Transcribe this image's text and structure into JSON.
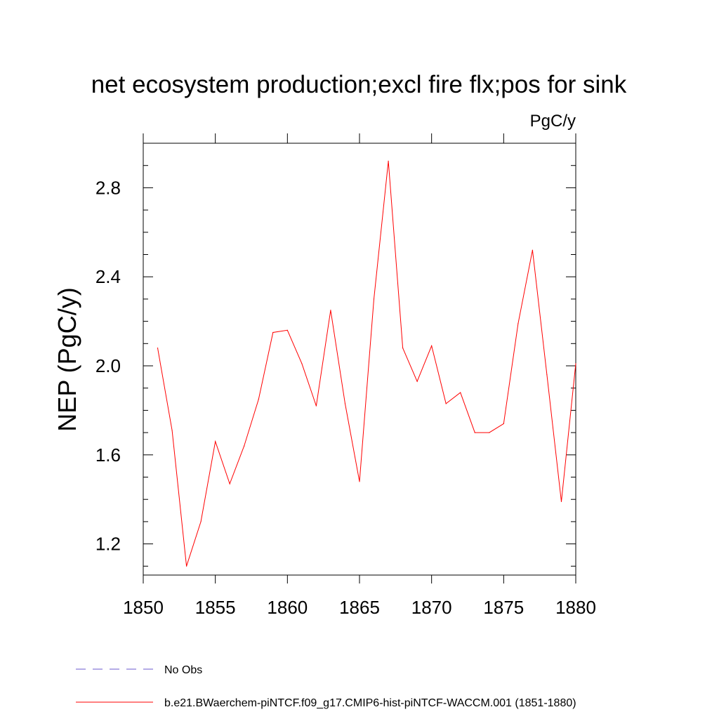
{
  "chart_data": {
    "type": "line",
    "title": "net ecosystem production;excl fire flx;pos for sink",
    "units": "PgC/y",
    "ylabel": "NEP  (PgC/y)",
    "xlabel": "",
    "xlim": [
      1850,
      1880
    ],
    "ylim": [
      1.06,
      3.0
    ],
    "xticks": [
      1850,
      1855,
      1860,
      1865,
      1870,
      1875,
      1880
    ],
    "xtick_labels": [
      "1850",
      "1855",
      "1860",
      "1865",
      "1870",
      "1875",
      "1880"
    ],
    "yticks": [
      1.2,
      1.6,
      2.0,
      2.4,
      2.8
    ],
    "ytick_labels": [
      "1.2",
      "1.6",
      "2.0",
      "2.4",
      "2.8"
    ],
    "grid": false,
    "legend_placement": "bottom-left, below plot",
    "series": [
      {
        "name": "b.e21.BWaerchem-piNTCF.f09_g17.CMIP6-hist-piNTCF-WACCM.001 (1851-1880)",
        "color": "#ff0000",
        "style": "solid",
        "x": [
          1851,
          1852,
          1853,
          1854,
          1855,
          1856,
          1857,
          1858,
          1859,
          1860,
          1861,
          1862,
          1863,
          1864,
          1865,
          1866,
          1867,
          1868,
          1869,
          1870,
          1871,
          1872,
          1873,
          1874,
          1875,
          1876,
          1877,
          1878,
          1879,
          1880
        ],
        "y": [
          2.08,
          1.71,
          1.1,
          1.3,
          1.66,
          1.47,
          1.64,
          1.85,
          2.15,
          2.16,
          2.01,
          1.82,
          2.25,
          1.83,
          1.48,
          2.3,
          2.92,
          2.08,
          1.93,
          2.09,
          1.83,
          1.88,
          1.7,
          1.7,
          1.74,
          2.19,
          2.52,
          1.96,
          1.39,
          2.01
        ]
      }
    ],
    "legend": [
      {
        "label": "No Obs",
        "color": "#6a5acd",
        "style": "dashed"
      },
      {
        "label": "b.e21.BWaerchem-piNTCF.f09_g17.CMIP6-hist-piNTCF-WACCM.001 (1851-1880)",
        "color": "#ff0000",
        "style": "solid"
      }
    ]
  }
}
